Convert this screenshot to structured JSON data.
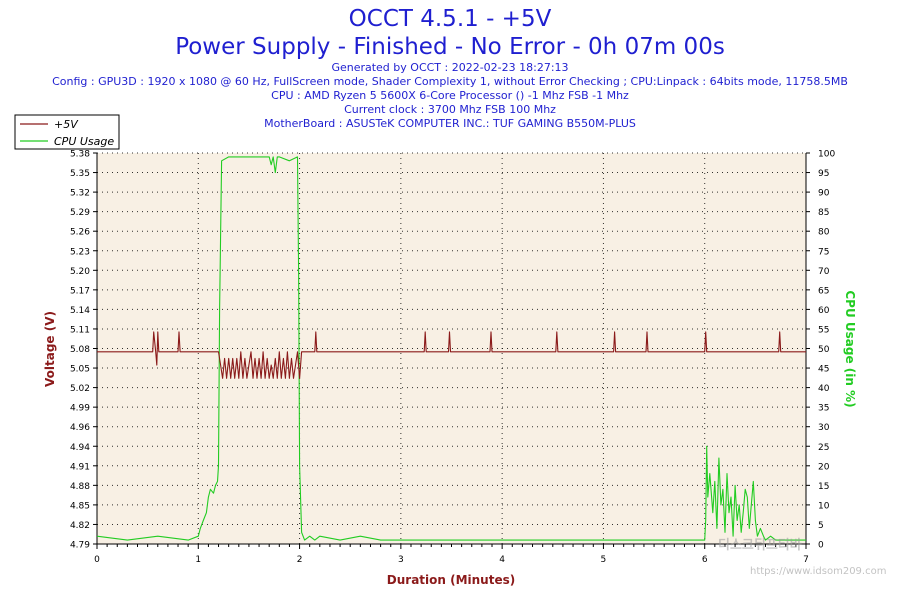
{
  "header": {
    "title": "OCCT 4.5.1 - +5V",
    "subtitle": "Power Supply - Finished - No Error - 0h 07m 00s",
    "generated": "Generated by OCCT : 2022-02-23 18:27:13",
    "config": "Config : GPU3D : 1920 x 1080 @ 60 Hz, FullScreen mode, Shader Complexity 1, without Error Checking ; CPU:Linpack : 64bits mode, 11758.5MB",
    "cpu": "CPU : AMD Ryzen 5 5600X 6-Core Processor () -1 Mhz FSB -1 Mhz",
    "clock": "Current clock : 3700 Mhz FSB 100 Mhz",
    "motherboard": "MotherBoard : ASUSTeK COMPUTER INC.: TUF GAMING B550M-PLUS"
  },
  "watermark": {
    "text": "디스크뒤프티바",
    "url": "https://www.idsom209.com"
  },
  "colors": {
    "title": "#1f1fd0",
    "voltage": "#8b1a1a",
    "cpu": "#22cc22",
    "axis_label_left": "#8b1a1a",
    "axis_label_right": "#22cc22",
    "xlabel": "#8b1a1a",
    "plot_bg": "#f8f0e4",
    "grid": "#000000"
  },
  "chart_data": {
    "type": "line",
    "xlabel": "Duration (Minutes)",
    "ylabel_left": "Voltage (V)",
    "ylabel_right": "CPU Usage (in %)",
    "xlim": [
      0,
      7
    ],
    "ylim_left": [
      4.79,
      5.38
    ],
    "ylim_right": [
      0,
      100
    ],
    "x_ticks": [
      0,
      1,
      2,
      3,
      4,
      5,
      6,
      7
    ],
    "y_ticks_left": [
      "4.79",
      "4.82",
      "4.85",
      "4.88",
      "4.91",
      "4.94",
      "4.96",
      "4.99",
      "5.02",
      "5.05",
      "5.08",
      "5.11",
      "5.14",
      "5.17",
      "5.20",
      "5.23",
      "5.26",
      "5.29",
      "5.32",
      "5.35",
      "5.38"
    ],
    "y_ticks_right": [
      0,
      5,
      10,
      15,
      20,
      25,
      30,
      35,
      40,
      45,
      50,
      55,
      60,
      65,
      70,
      75,
      80,
      85,
      90,
      95,
      100
    ],
    "grid": true,
    "legend_position": "top-left",
    "series": [
      {
        "name": "+5V",
        "axis": "left",
        "x": [
          0,
          0.55,
          0.56,
          0.58,
          0.59,
          0.6,
          0.61,
          0.62,
          0.63,
          0.8,
          0.81,
          0.82,
          1.2,
          1.22,
          1.24,
          1.26,
          1.28,
          1.3,
          1.32,
          1.34,
          1.36,
          1.38,
          1.4,
          1.42,
          1.44,
          1.46,
          1.48,
          1.5,
          1.52,
          1.54,
          1.56,
          1.58,
          1.6,
          1.62,
          1.64,
          1.66,
          1.68,
          1.7,
          1.72,
          1.74,
          1.76,
          1.78,
          1.8,
          1.82,
          1.84,
          1.86,
          1.88,
          1.9,
          1.92,
          1.94,
          1.96,
          1.98,
          2.0,
          2.02,
          2.15,
          2.16,
          2.17,
          3.23,
          3.24,
          3.25,
          3.47,
          3.48,
          3.49,
          3.88,
          3.89,
          3.9,
          4.53,
          4.54,
          4.55,
          5.1,
          5.11,
          5.12,
          5.42,
          5.43,
          5.44,
          6.0,
          6.01,
          6.02,
          6.73,
          6.74,
          6.75,
          7.0
        ],
        "y": [
          5.08,
          5.08,
          5.11,
          5.08,
          5.06,
          5.11,
          5.08,
          5.08,
          5.08,
          5.08,
          5.11,
          5.08,
          5.08,
          5.06,
          5.04,
          5.07,
          5.04,
          5.07,
          5.04,
          5.07,
          5.04,
          5.07,
          5.04,
          5.08,
          5.04,
          5.07,
          5.04,
          5.06,
          5.08,
          5.04,
          5.07,
          5.04,
          5.07,
          5.04,
          5.08,
          5.04,
          5.07,
          5.04,
          5.06,
          5.04,
          5.07,
          5.04,
          5.08,
          5.04,
          5.07,
          5.04,
          5.08,
          5.04,
          5.07,
          5.04,
          5.06,
          5.08,
          5.04,
          5.08,
          5.08,
          5.11,
          5.08,
          5.08,
          5.11,
          5.08,
          5.08,
          5.11,
          5.08,
          5.08,
          5.11,
          5.08,
          5.08,
          5.11,
          5.08,
          5.08,
          5.11,
          5.08,
          5.08,
          5.11,
          5.08,
          5.08,
          5.11,
          5.08,
          5.08,
          5.11,
          5.08,
          5.08
        ]
      },
      {
        "name": "CPU Usage",
        "axis": "right",
        "x": [
          0,
          0.3,
          0.6,
          0.9,
          1.0,
          1.02,
          1.05,
          1.08,
          1.1,
          1.12,
          1.15,
          1.17,
          1.19,
          1.2,
          1.21,
          1.23,
          1.3,
          1.5,
          1.7,
          1.72,
          1.74,
          1.76,
          1.78,
          1.8,
          1.9,
          1.98,
          1.99,
          2.0,
          2.02,
          2.05,
          2.1,
          2.15,
          2.2,
          2.4,
          2.6,
          2.8,
          3.0,
          3.5,
          4.0,
          4.5,
          5.0,
          5.5,
          6.0,
          6.01,
          6.02,
          6.03,
          6.05,
          6.08,
          6.1,
          6.12,
          6.14,
          6.16,
          6.18,
          6.2,
          6.22,
          6.24,
          6.26,
          6.28,
          6.3,
          6.32,
          6.34,
          6.36,
          6.38,
          6.4,
          6.42,
          6.44,
          6.46,
          6.48,
          6.5,
          6.52,
          6.55,
          6.58,
          6.6,
          6.65,
          6.7,
          6.75,
          6.8,
          7.0
        ],
        "y": [
          2,
          1,
          2,
          1,
          2,
          4,
          6,
          8,
          12,
          14,
          13,
          15,
          16,
          20,
          60,
          98,
          99,
          99,
          99,
          97,
          99,
          95,
          99,
          99,
          98,
          99,
          70,
          20,
          3,
          1,
          2,
          1,
          2,
          1,
          2,
          1,
          1,
          1,
          1,
          1,
          1,
          1,
          1,
          6,
          25,
          12,
          18,
          8,
          16,
          4,
          22,
          10,
          14,
          3,
          18,
          8,
          12,
          2,
          15,
          6,
          10,
          3,
          8,
          14,
          12,
          4,
          10,
          16,
          6,
          2,
          4,
          2,
          1,
          2,
          1,
          1,
          1,
          1
        ]
      }
    ]
  }
}
